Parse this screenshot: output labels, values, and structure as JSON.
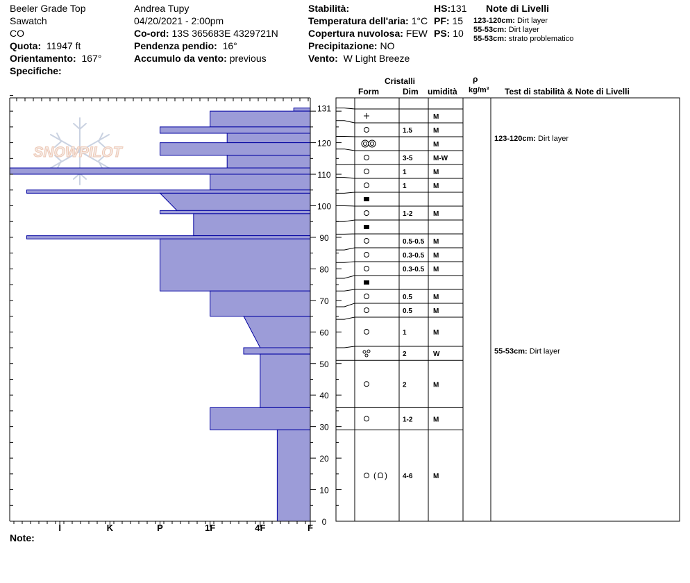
{
  "header": {
    "location": "Beeler Grade Top",
    "range": "Sawatch",
    "state": "CO",
    "elevation_label": "Quota:",
    "elevation_value": "11947 ft",
    "aspect_label": "Orientamento:",
    "aspect_value": "167°",
    "specifics_label": "Specifiche:",
    "observer": "Andrea Tupy",
    "datetime": "04/20/2021 - 2:00pm",
    "coord_label": "Co-ord:",
    "coord_value": "13S 365683E 4329721N",
    "slope_label": "Pendenza pendio:",
    "slope_value": "16°",
    "wind_load_label": "Accumulo da vento:",
    "wind_load_value": "previous",
    "stability_label": "Stabilità:",
    "air_temp_label": "Temperatura dell'aria:",
    "air_temp_value": "1°C",
    "cloud_label": "Copertura nuvolosa:",
    "cloud_value": "FEW",
    "precip_label": "Precipitazione:",
    "precip_value": "NO",
    "wind_label": "Vento:",
    "wind_value": "W Light Breeze",
    "hs_label": "HS:",
    "hs_value": "131",
    "pf_label": "PF:",
    "pf_value": "15",
    "ps_label": "PS:",
    "ps_value": "10",
    "layer_notes_title": "Note di Livelli",
    "layer_notes": [
      {
        "range": "123-120cm:",
        "text": "Dirt layer"
      },
      {
        "range": "55-53cm:",
        "text": "Dirt layer"
      },
      {
        "range": "55-53cm:",
        "text": "strato problematico"
      }
    ]
  },
  "logo_text": "SNOWPILOT",
  "footer": {
    "note_label": "Note:"
  },
  "table_headers": {
    "crystals": "Cristalli",
    "form": "Form",
    "size": "Dim",
    "moisture": "umidità",
    "rho": "ρ",
    "density_unit": "kg/m³",
    "tests": "Test di stabilità & Note di Livelli"
  },
  "test_notes": [
    {
      "depth": 121.5,
      "range": "123-120cm:",
      "text": "Dirt layer"
    },
    {
      "depth": 54,
      "range": "55-53cm:",
      "text": "Dirt layer"
    }
  ],
  "chart_data": {
    "type": "snow-profile",
    "y_unit": "cm",
    "ylim": [
      0,
      135
    ],
    "yticks": [
      0,
      10,
      20,
      30,
      40,
      50,
      60,
      70,
      80,
      90,
      100,
      110,
      120,
      131
    ],
    "hardness_scale": [
      "I",
      "K",
      "P",
      "1F",
      "4F",
      "F"
    ],
    "hardness_tick_values": [
      5,
      4,
      3,
      2,
      1,
      0
    ],
    "hardness_profile": [
      {
        "top": 131,
        "bottom": 130,
        "hardness": 0.33
      },
      {
        "top": 130,
        "bottom": 125,
        "hardness": 2.0
      },
      {
        "top": 125,
        "bottom": 123,
        "hardness": 3.0
      },
      {
        "top": 123,
        "bottom": 120,
        "hardness": 1.66
      },
      {
        "top": 120,
        "bottom": 116,
        "hardness": 3.0
      },
      {
        "top": 116,
        "bottom": 112,
        "hardness": 1.66
      },
      {
        "top": 112,
        "bottom": 110,
        "hardness": 6.0
      },
      {
        "top": 110,
        "bottom": 105,
        "hardness": 2.0
      },
      {
        "top": 105,
        "bottom": 104,
        "hardness": 5.66
      },
      {
        "top": 104,
        "bottom": 98.5,
        "hardness": 3.0,
        "hardness_bottom": 2.66
      },
      {
        "top": 98.5,
        "bottom": 97.5,
        "hardness": 3.0
      },
      {
        "top": 97.5,
        "bottom": 90.5,
        "hardness": 2.33
      },
      {
        "top": 90.5,
        "bottom": 89.5,
        "hardness": 5.66
      },
      {
        "top": 89.5,
        "bottom": 73,
        "hardness": 3.0
      },
      {
        "top": 73,
        "bottom": 65,
        "hardness": 2.0
      },
      {
        "top": 65,
        "bottom": 55,
        "hardness": 1.33,
        "hardness_bottom": 1.0
      },
      {
        "top": 55,
        "bottom": 53,
        "hardness": 1.33
      },
      {
        "top": 53,
        "bottom": 36,
        "hardness": 1.0
      },
      {
        "top": 36,
        "bottom": 29,
        "hardness": 2.0
      },
      {
        "top": 29,
        "bottom": 0,
        "hardness": 0.66
      }
    ],
    "layers": [
      {
        "top": 131,
        "bottom": 127,
        "form": "plus",
        "size": "",
        "moisture": "M"
      },
      {
        "top": 127,
        "bottom": 122,
        "form": "circle",
        "size": "1.5",
        "moisture": "M"
      },
      {
        "top": 122,
        "bottom": 118,
        "form": "double-circle",
        "size": "",
        "moisture": "M"
      },
      {
        "top": 118,
        "bottom": 113,
        "form": "circle",
        "size": "3-5",
        "moisture": "M-W"
      },
      {
        "top": 113,
        "bottom": 109,
        "form": "circle",
        "size": "1",
        "moisture": "M"
      },
      {
        "top": 109,
        "bottom": 104,
        "form": "circle",
        "size": "1",
        "moisture": "M"
      },
      {
        "top": 104,
        "bottom": 100,
        "form": "square",
        "size": "",
        "moisture": ""
      },
      {
        "top": 100,
        "bottom": 95,
        "form": "circle",
        "size": "1-2",
        "moisture": "M"
      },
      {
        "top": 95,
        "bottom": 91,
        "form": "square",
        "size": "",
        "moisture": ""
      },
      {
        "top": 91,
        "bottom": 86,
        "form": "circle",
        "size": "0.5-0.5",
        "moisture": "M"
      },
      {
        "top": 86,
        "bottom": 82,
        "form": "circle",
        "size": "0.3-0.5",
        "moisture": "M"
      },
      {
        "top": 82,
        "bottom": 77,
        "form": "circle",
        "size": "0.3-0.5",
        "moisture": "M"
      },
      {
        "top": 77,
        "bottom": 73,
        "form": "square",
        "size": "",
        "moisture": ""
      },
      {
        "top": 73,
        "bottom": 68,
        "form": "circle",
        "size": "0.5",
        "moisture": "M"
      },
      {
        "top": 68,
        "bottom": 64,
        "form": "circle",
        "size": "0.5",
        "moisture": "M"
      },
      {
        "top": 64,
        "bottom": 55,
        "form": "circle",
        "size": "1",
        "moisture": "M"
      },
      {
        "top": 55,
        "bottom": 51,
        "form": "wet-grains",
        "size": "2",
        "moisture": "W"
      },
      {
        "top": 51,
        "bottom": 36,
        "form": "circle",
        "size": "2",
        "moisture": "M"
      },
      {
        "top": 36,
        "bottom": 29,
        "form": "circle",
        "size": "1-2",
        "moisture": "M"
      },
      {
        "top": 29,
        "bottom": 0,
        "form": "circle-crust",
        "size": "4-6",
        "moisture": "M"
      }
    ],
    "colors": {
      "fill": "#9c9cd8",
      "stroke": "#0000a0"
    }
  }
}
